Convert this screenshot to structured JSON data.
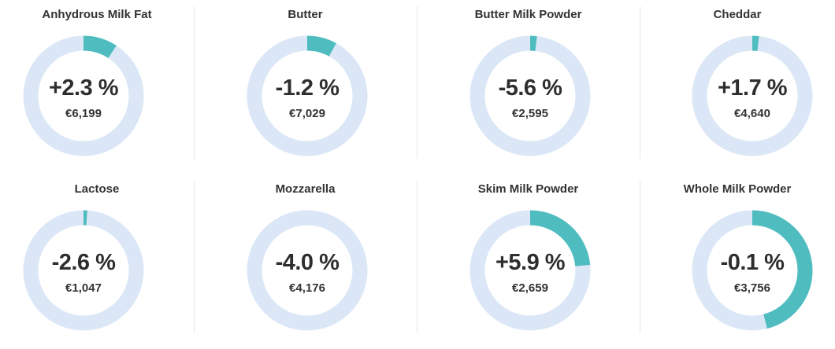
{
  "chart_data": [
    {
      "type": "pie",
      "title": "Anhydrous Milk Fat",
      "change": "+2.3 %",
      "price": "€6,199",
      "value": 2.3,
      "fraction": 0.092
    },
    {
      "type": "pie",
      "title": "Butter",
      "change": "-1.2 %",
      "price": "€7,029",
      "value": -1.2,
      "fraction": 0.08
    },
    {
      "type": "pie",
      "title": "Butter Milk Powder",
      "change": "-5.6 %",
      "price": "€2,595",
      "value": -5.6,
      "fraction": 0.018
    },
    {
      "type": "pie",
      "title": "Cheddar",
      "change": "+1.7 %",
      "price": "€4,640",
      "value": 1.7,
      "fraction": 0.018
    },
    {
      "type": "pie",
      "title": "Lactose",
      "change": "-2.6 %",
      "price": "€1,047",
      "value": -2.6,
      "fraction": 0.01
    },
    {
      "type": "pie",
      "title": "Mozzarella",
      "change": "-4.0 %",
      "price": "€4,176",
      "value": -4.0,
      "fraction": 0.0
    },
    {
      "type": "pie",
      "title": "Skim Milk Powder",
      "change": "+5.9 %",
      "price": "€2,659",
      "value": 5.9,
      "fraction": 0.235
    },
    {
      "type": "pie",
      "title": "Whole Milk Powder",
      "change": "-0.1 %",
      "price": "€3,756",
      "value": -0.1,
      "fraction": 0.46
    }
  ],
  "colors": {
    "track": "#dbe7f6",
    "fill": "#4fbdbf"
  }
}
